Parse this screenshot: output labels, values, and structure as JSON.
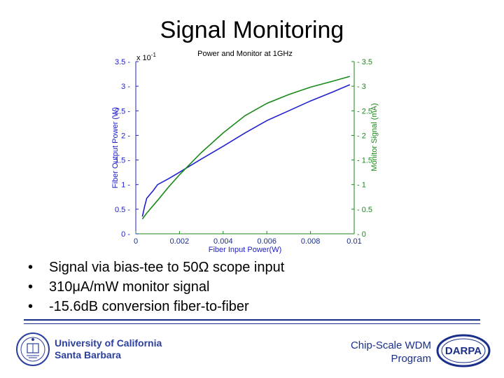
{
  "slide": {
    "title": "Signal Monitoring",
    "bullets": [
      "Signal via bias-tee to 50Ω scope input",
      "310μA/mW monitor signal",
      "-15.6dB conversion fiber-to-fiber"
    ],
    "bullet_glyph": "•"
  },
  "footer": {
    "institution_line1": "University of California",
    "institution_line2": "Santa Barbara",
    "program_line1": "Chip-Scale WDM",
    "program_line2": "Program",
    "sponsor_logo_text": "DARPA"
  },
  "chart_data": {
    "type": "line",
    "title": "Power and Monitor at 1GHz",
    "xlabel": "Fiber Input Power(W)",
    "ylabel_left": "Fiber Output Power (W)",
    "ylabel_right": "Monitor Signal (mA)",
    "left_axis_multiplier": "x 10",
    "left_axis_exponent": "-1",
    "xlim": [
      0,
      0.01
    ],
    "ylim_left": [
      0,
      3.5
    ],
    "ylim_right": [
      0,
      3.5
    ],
    "x_ticks": [
      "0",
      "0.002",
      "0.004",
      "0.006",
      "0.008",
      "0.01"
    ],
    "y_ticks_left": [
      "0",
      "0.5",
      "1",
      "1.5",
      "2",
      "2.5",
      "3",
      "3.5"
    ],
    "y_ticks_right": [
      "0",
      "0.5",
      "1",
      "1.5",
      "2",
      "2.5",
      "3",
      "3.5"
    ],
    "grid": false,
    "colors": {
      "left_axis": "#2020cc",
      "right_axis": "#1a8a1a"
    },
    "series": [
      {
        "axis": "left",
        "color": "#2020cc",
        "x": [
          0.0003,
          0.0004,
          0.0005,
          0.0008,
          0.001,
          0.0015,
          0.002,
          0.003,
          0.004,
          0.005,
          0.006,
          0.007,
          0.008,
          0.009,
          0.0098
        ],
        "y": [
          0.35,
          0.55,
          0.72,
          0.88,
          1.0,
          1.12,
          1.25,
          1.52,
          1.78,
          2.05,
          2.3,
          2.5,
          2.7,
          2.88,
          3.03
        ]
      },
      {
        "axis": "right",
        "color": "#1a8a1a",
        "x": [
          0.0003,
          0.0005,
          0.001,
          0.0015,
          0.002,
          0.003,
          0.004,
          0.005,
          0.006,
          0.007,
          0.008,
          0.009,
          0.0098
        ],
        "y": [
          0.3,
          0.42,
          0.68,
          0.95,
          1.2,
          1.65,
          2.05,
          2.4,
          2.65,
          2.83,
          2.98,
          3.1,
          3.2
        ]
      }
    ]
  }
}
